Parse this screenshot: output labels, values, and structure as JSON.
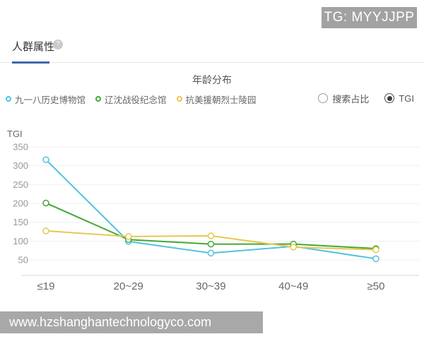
{
  "overlay": {
    "tg_badge": "TG: MYYJJPP",
    "watermark": "www.hzshanghantechnologyco.com"
  },
  "section": {
    "title": "人群属性",
    "help_icon": "question-mark"
  },
  "controls": {
    "options": [
      {
        "label": "搜索占比",
        "selected": false
      },
      {
        "label": "TGI",
        "selected": true
      }
    ]
  },
  "chart_data": {
    "type": "line",
    "title": "年龄分布",
    "ylabel": "TGI",
    "categories": [
      "≤19",
      "20~29",
      "30~39",
      "40~49",
      "≥50"
    ],
    "yticks": [
      350,
      300,
      250,
      200,
      150,
      100,
      50
    ],
    "ylim": [
      0,
      370
    ],
    "grid": true,
    "legend_position": "top-left",
    "marker": "hollow-circle",
    "series": [
      {
        "name": "九一八历史博物馆",
        "color": "#54c2de",
        "values": [
          316,
          99,
          68,
          86,
          53
        ]
      },
      {
        "name": "辽沈战役纪念馆",
        "color": "#41a935",
        "values": [
          201,
          104,
          92,
          92,
          80
        ]
      },
      {
        "name": "抗美援朝烈士陵园",
        "color": "#e9c653",
        "values": [
          127,
          112,
          114,
          84,
          77
        ]
      }
    ],
    "colors": {
      "grid": "#efefef",
      "axis": "#d8d8d8",
      "tick_text": "#999999",
      "label_text": "#666666",
      "accent_tab": "#3e68af"
    }
  }
}
